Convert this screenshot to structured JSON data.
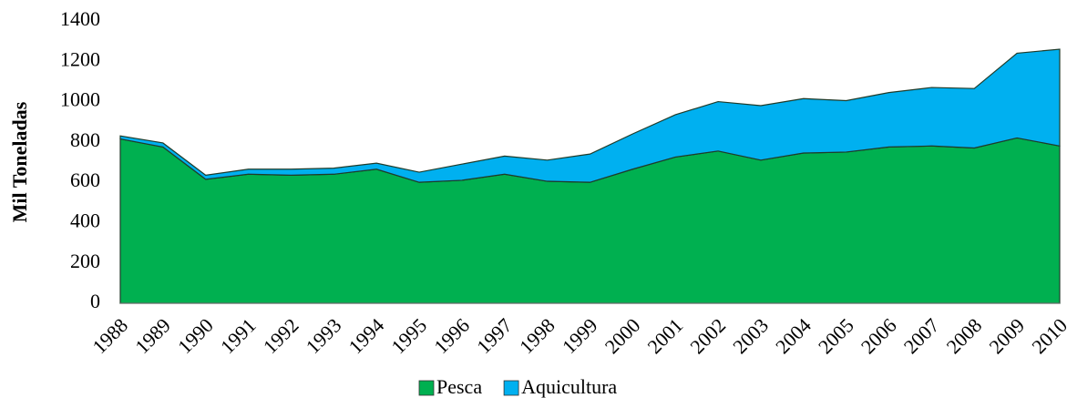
{
  "chart_data": {
    "type": "stacked_area",
    "y_label": "Mil Toneladas",
    "categories": [
      "1988",
      "1989",
      "1990",
      "1991",
      "1992",
      "1993",
      "1994",
      "1995",
      "1996",
      "1997",
      "1998",
      "1999",
      "2000",
      "2001",
      "2002",
      "2003",
      "2004",
      "2005",
      "2006",
      "2007",
      "2008",
      "2009",
      "2010"
    ],
    "series": [
      {
        "name": "Pesca",
        "color": "#00b050",
        "values": [
          815,
          775,
          615,
          640,
          635,
          640,
          665,
          600,
          610,
          640,
          605,
          600,
          665,
          725,
          755,
          710,
          745,
          750,
          775,
          780,
          770,
          820,
          780
        ]
      },
      {
        "name": "Aquicultura",
        "color": "#00b0f0",
        "values": [
          15,
          20,
          20,
          25,
          30,
          30,
          30,
          50,
          80,
          90,
          105,
          140,
          175,
          210,
          245,
          270,
          270,
          255,
          270,
          290,
          295,
          420,
          480
        ]
      }
    ],
    "ylim": [
      0,
      1400
    ],
    "yticks": [
      0,
      200,
      400,
      600,
      800,
      1000,
      1200,
      1400
    ],
    "legend": "bottom"
  }
}
